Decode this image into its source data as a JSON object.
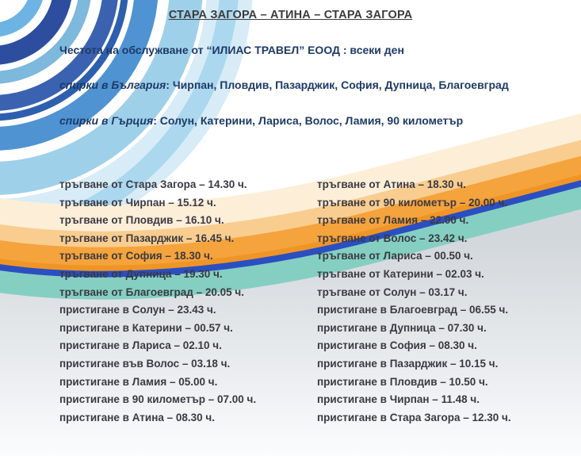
{
  "title": "СТАРА ЗАГОРА – АТИНА – СТАРА ЗАГОРА",
  "frequency_line": "Честота на обслужване от “ИЛИАС ТРАВЕЛ” ЕООД : всеки ден",
  "stops_bulgaria": {
    "label": "спирки в България",
    "list": ": Чирпан, Пловдив, Пазарджик, София, Дупница, Благоевград"
  },
  "stops_greece": {
    "label": "спирки в Гърция",
    "list": ": Солун, Катерини, Лариса, Волос, Ламия, 90 километър"
  },
  "schedule": {
    "outbound": [
      "тръгване от Стара Загора – 14.30 ч.",
      "тръгване от Чирпан – 15.12 ч.",
      "тръгване от Пловдив – 16.10 ч.",
      "тръгване от Пазарджик – 16.45 ч.",
      "тръгване от София – 18.30 ч.",
      "тръгване от Дупница – 19.30 ч.",
      "тръгване от Благоевград – 20.05 ч.",
      "пристигане в Солун – 23.43 ч.",
      "пристигане в Катерини – 00.57 ч.",
      "пристигане в Лариса – 02.10 ч.",
      "пристигане във Волос – 03.18 ч.",
      "пристигане в Ламия – 05.00 ч.",
      "пристигане в 90 километър – 07.00 ч.",
      "пристигане в Атина – 08.30 ч."
    ],
    "return": [
      "тръгване от Атина – 18.30 ч.",
      "тръгване от 90 километър – 20.00 ч.",
      "тръгване от Ламия – 22.00 ч.",
      "тръгване от Волос – 23.42 ч.",
      "тръгване от Лариса – 00.50 ч.",
      "тръгване от Катерини – 02.03 ч.",
      "тръгване от Солун – 03.17 ч.",
      "пристигане в Благоевград – 06.55 ч.",
      "пристигане в Дупница – 07.30 ч.",
      "пристигане в София – 08.30 ч.",
      "пристигане в Пазарджик – 10.15 ч.",
      "пристигане в Пловдив – 10.50 ч.",
      "пристигане в Чирпан – 11.48 ч.",
      "пристигане в Стара Загора – 12.30 ч."
    ]
  },
  "colors": {
    "heading_text": "#3B3B3B",
    "intro_text": "#1E3A66",
    "schedule_text": "#3A3A42",
    "wave_orange": "#F5A33C",
    "wave_peach": "#F9CD90",
    "wave_cream": "#FDEED8",
    "wave_blue_stripe": "#2B4FC0",
    "wave_teal": "#85CFC2",
    "wave_gray": "#D2D7DB",
    "swirl_dark_blue": "#2D4E9E",
    "swirl_blue": "#4F93D2",
    "swirl_light_blue": "#9FD0EA",
    "swirl_pale_blue": "#D7ECF7"
  }
}
